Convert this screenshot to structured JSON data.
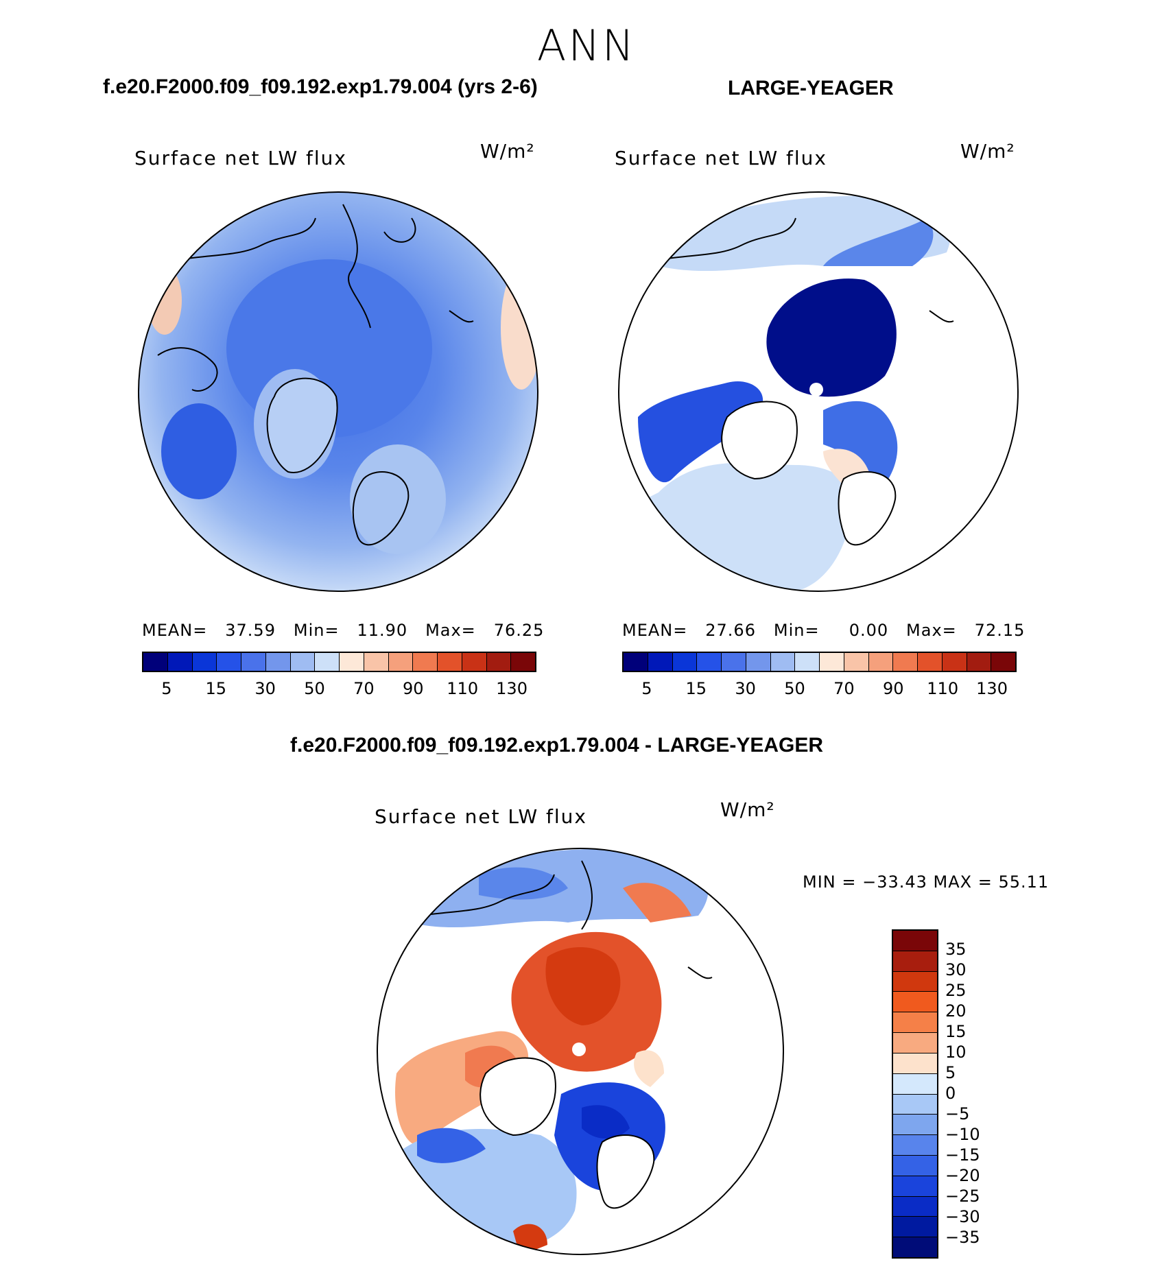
{
  "season": "ANN",
  "panel1": {
    "case_title": "f.e20.F2000.f09_f09.192.exp1.79.004 (yrs 2-6)",
    "variable": "Surface net LW flux",
    "units": "W/m²",
    "stats": {
      "mean_label": "MEAN=",
      "mean": "37.59",
      "min_label": "Min=",
      "min": "11.90",
      "max_label": "Max=",
      "max": "76.25"
    }
  },
  "panel2": {
    "case_title": "LARGE-YEAGER",
    "variable": "Surface net LW flux",
    "units": "W/m²",
    "stats": {
      "mean_label": "MEAN=",
      "mean": "27.66",
      "min_label": "Min=",
      "min": "0.00",
      "max_label": "Max=",
      "max": "72.15"
    }
  },
  "colorbar_top": {
    "colors": [
      "#00007a",
      "#0018b8",
      "#0a36d8",
      "#2552e8",
      "#4a72ea",
      "#7396ec",
      "#9fbcf2",
      "#cde0f8",
      "#fde8d8",
      "#f9c4a8",
      "#f5a07c",
      "#f07a50",
      "#e3522a",
      "#c93216",
      "#a21c10",
      "#7a0608"
    ],
    "ticks": [
      "5",
      "15",
      "30",
      "50",
      "70",
      "90",
      "110",
      "130"
    ]
  },
  "panel3": {
    "title": "f.e20.F2000.f09_f09.192.exp1.79.004 - LARGE-YEAGER",
    "variable": "Surface net LW flux",
    "units": "W/m²",
    "minmax": "MIN = −33.43 MAX =  55.11"
  },
  "colorbar_diff": {
    "colors": [
      "#7a0608",
      "#a81e0e",
      "#d0380e",
      "#f05a1e",
      "#f58048",
      "#f8aa80",
      "#fde2cc",
      "#d4e8fc",
      "#a8c8f6",
      "#7ea6ee",
      "#5884ec",
      "#3462e6",
      "#1a44dc",
      "#0a2cc6",
      "#001aa0",
      "#000c78"
    ],
    "ticks": [
      "35",
      "30",
      "25",
      "20",
      "15",
      "10",
      "5",
      "0",
      "−5",
      "−10",
      "−15",
      "−20",
      "−25",
      "−30",
      "−35"
    ]
  }
}
